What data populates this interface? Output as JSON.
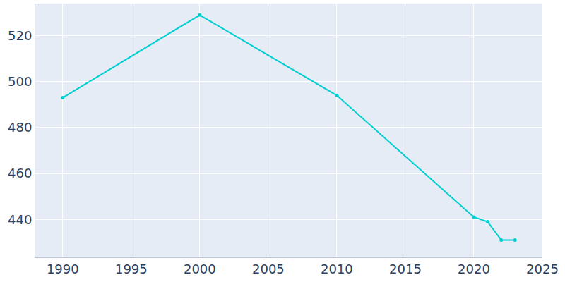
{
  "chart_data": {
    "type": "line",
    "x": [
      1990,
      2000,
      2010,
      2020,
      2021,
      2022,
      2023
    ],
    "values": [
      493,
      529,
      494,
      441,
      439,
      431,
      431
    ],
    "color": "#00ced1",
    "marker": "circle",
    "xlim": [
      1988,
      2025
    ],
    "ylim": [
      423.5,
      534
    ],
    "xticks": [
      1990,
      1995,
      2000,
      2005,
      2010,
      2015,
      2020,
      2025
    ],
    "yticks": [
      440,
      460,
      480,
      500,
      520
    ],
    "grid": true
  }
}
